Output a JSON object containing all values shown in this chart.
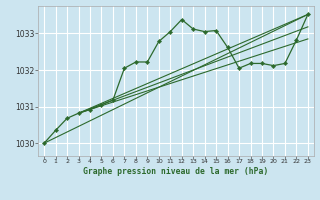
{
  "title": "Graphe pression niveau de la mer (hPa)",
  "bg_color": "#cce5f0",
  "grid_color": "#ffffff",
  "line_color": "#2d6a2d",
  "xlim": [
    -0.5,
    23.5
  ],
  "ylim": [
    1029.65,
    1033.75
  ],
  "yticks": [
    1030,
    1031,
    1032,
    1033
  ],
  "xticks": [
    0,
    1,
    2,
    3,
    4,
    5,
    6,
    7,
    8,
    9,
    10,
    11,
    12,
    13,
    14,
    15,
    16,
    17,
    18,
    19,
    20,
    21,
    22,
    23
  ],
  "series1_x": [
    0,
    1,
    2,
    3,
    4,
    5,
    6,
    7,
    8,
    9,
    10,
    11,
    12,
    13,
    14,
    15,
    16,
    17,
    18,
    19,
    20,
    21,
    22,
    23
  ],
  "series1_y": [
    1030.0,
    1030.35,
    1030.68,
    1030.82,
    1030.92,
    1031.05,
    1031.18,
    1032.05,
    1032.22,
    1032.22,
    1032.78,
    1033.05,
    1033.38,
    1033.12,
    1033.05,
    1033.08,
    1032.62,
    1032.05,
    1032.18,
    1032.18,
    1032.12,
    1032.18,
    1032.82,
    1033.52
  ],
  "trend1_x": [
    0,
    23
  ],
  "trend1_y": [
    1030.0,
    1033.52
  ],
  "trend2_x": [
    3,
    23
  ],
  "trend2_y": [
    1030.82,
    1033.52
  ],
  "trend3_x": [
    3,
    23
  ],
  "trend3_y": [
    1030.82,
    1033.18
  ],
  "trend4_x": [
    3,
    23
  ],
  "trend4_y": [
    1030.82,
    1032.85
  ]
}
